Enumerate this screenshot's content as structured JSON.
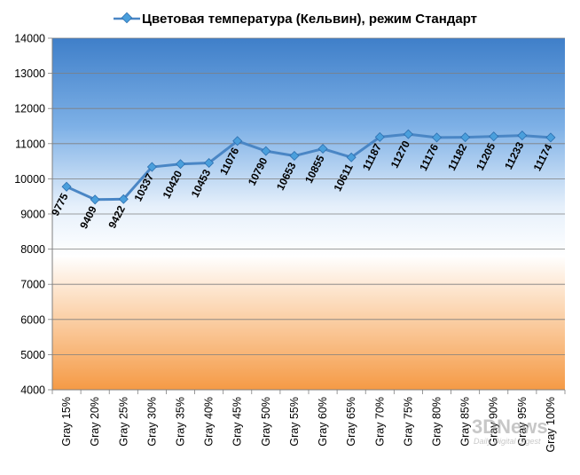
{
  "chart_data": {
    "type": "line",
    "title": "",
    "xlabel": "",
    "ylabel": "",
    "ylim": [
      4000,
      14000
    ],
    "yticks": [
      4000,
      5000,
      6000,
      7000,
      8000,
      9000,
      10000,
      11000,
      12000,
      13000,
      14000
    ],
    "grid": true,
    "legend_position": "top",
    "categories": [
      "Gray 15%",
      "Gray 20%",
      "Gray 25%",
      "Gray 30%",
      "Gray 35%",
      "Gray 40%",
      "Gray 45%",
      "Gray 50%",
      "Gray 55%",
      "Gray 60%",
      "Gray 65%",
      "Gray 70%",
      "Gray 75%",
      "Gray 80%",
      "Gray 85%",
      "Gray 90%",
      "Gray 95%",
      "Gray 100%"
    ],
    "series": [
      {
        "name": "Цветовая температура (Кельвин), режим Стандарт",
        "color": "#4a86c5",
        "values": [
          9775,
          9409,
          9422,
          10337,
          10420,
          10453,
          11076,
          10790,
          10653,
          10855,
          10611,
          11187,
          11270,
          11176,
          11182,
          11205,
          11233,
          11174
        ]
      }
    ]
  },
  "watermark": {
    "brand": "3DNews",
    "tagline": "Daily Digital Digest"
  },
  "colors": {
    "line": "#4a86c5",
    "marker_fill": "#4a9fdc",
    "bg_top": "#3f7fc9",
    "bg_mid": "#ffffff",
    "bg_bottom": "#f59a45"
  }
}
